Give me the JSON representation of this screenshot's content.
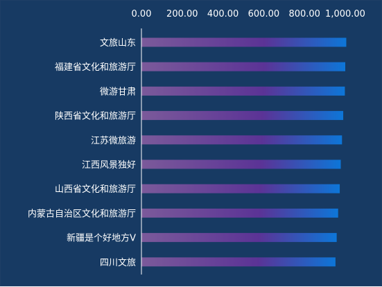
{
  "chart_data": {
    "type": "bar",
    "orientation": "horizontal",
    "x_axis_position": "top",
    "categories": [
      "文旅山东",
      "福建省文化和旅游厅",
      "微游甘肃",
      "陕西省文化和旅游厅",
      "江苏微旅游",
      "江西风景独好",
      "山西省文化和旅游厅",
      "内蒙古自治区文化和旅游厅",
      "新疆是个好地方V",
      "四川文旅"
    ],
    "values": [
      1005,
      1000,
      998,
      990,
      984,
      978,
      973,
      965,
      958,
      952
    ],
    "xlim": [
      0,
      1000
    ],
    "xticks": [
      0,
      200,
      400,
      600,
      800,
      1000
    ],
    "xtick_labels": [
      "0.00",
      "200.00",
      "400.00",
      "600.00",
      "800.00",
      "1,000.00"
    ],
    "grid": false,
    "legend": "none",
    "colors": {
      "background": "#173a63",
      "bar_start": "#7b5a9a",
      "bar_mid": "#5b3396",
      "bar_end": "#0d76d8",
      "axis": "#ffffff",
      "text": "#ffffff"
    }
  }
}
